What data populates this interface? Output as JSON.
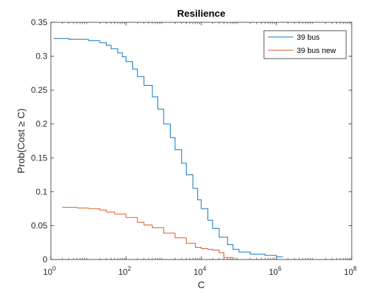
{
  "chart_data": {
    "type": "line",
    "title": "Resilience",
    "xlabel": "C",
    "ylabel": "Prob(Cost ≥ C)",
    "xscale": "log",
    "xlim": [
      1,
      100000000
    ],
    "ylim": [
      0,
      0.35
    ],
    "xticks": [
      {
        "value": 1,
        "base": "10",
        "exp": "0"
      },
      {
        "value": 100,
        "base": "10",
        "exp": "2"
      },
      {
        "value": 10000,
        "base": "10",
        "exp": "4"
      },
      {
        "value": 1000000,
        "base": "10",
        "exp": "6"
      },
      {
        "value": 100000000,
        "base": "10",
        "exp": "8"
      }
    ],
    "yticks": [
      {
        "value": 0,
        "label": "0"
      },
      {
        "value": 0.05,
        "label": "0.05"
      },
      {
        "value": 0.1,
        "label": "0.1"
      },
      {
        "value": 0.15,
        "label": "0.15"
      },
      {
        "value": 0.2,
        "label": "0.2"
      },
      {
        "value": 0.25,
        "label": "0.25"
      },
      {
        "value": 0.3,
        "label": "0.3"
      },
      {
        "value": 0.35,
        "label": "0.35"
      }
    ],
    "grid": false,
    "legend_position": "top-right",
    "series": [
      {
        "name": "39 bus",
        "color": "#0072BD",
        "x": [
          1.2,
          3,
          10,
          20,
          30,
          40,
          60,
          80,
          100,
          150,
          200,
          300,
          500,
          700,
          1000,
          1500,
          2000,
          3000,
          4000,
          6000,
          8000,
          10000,
          15000,
          20000,
          30000,
          50000,
          70000,
          100000,
          200000,
          500000,
          1000000,
          1500000
        ],
        "y": [
          0.326,
          0.325,
          0.323,
          0.32,
          0.316,
          0.311,
          0.305,
          0.299,
          0.292,
          0.281,
          0.27,
          0.257,
          0.24,
          0.222,
          0.2,
          0.18,
          0.162,
          0.142,
          0.125,
          0.105,
          0.088,
          0.075,
          0.058,
          0.046,
          0.033,
          0.022,
          0.015,
          0.011,
          0.008,
          0.006,
          0.004,
          0.004
        ]
      },
      {
        "name": "39 bus new",
        "color": "#D95319",
        "x": [
          2,
          5,
          10,
          20,
          30,
          50,
          100,
          200,
          300,
          500,
          1000,
          2000,
          4000,
          7000,
          10000,
          15000,
          20000,
          30000,
          40000,
          70000
        ],
        "y": [
          0.077,
          0.076,
          0.075,
          0.073,
          0.07,
          0.067,
          0.062,
          0.055,
          0.051,
          0.047,
          0.039,
          0.032,
          0.024,
          0.018,
          0.016,
          0.015,
          0.014,
          0.01,
          0.003,
          0.0
        ]
      }
    ]
  }
}
